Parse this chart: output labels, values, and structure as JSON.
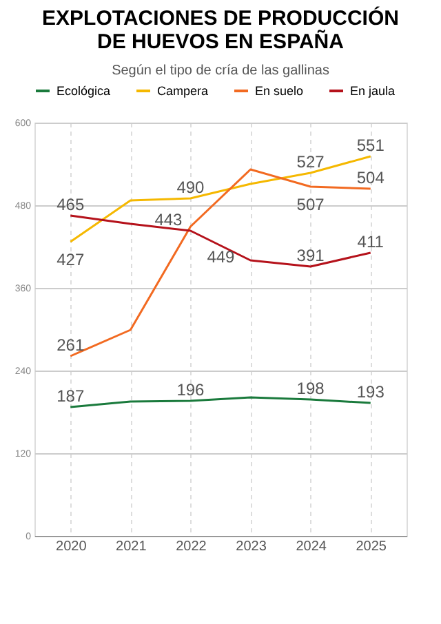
{
  "chart_data": {
    "type": "line",
    "title": "EXPLOTACIONES DE PRODUCCIÓN DE HUEVOS EN ESPAÑA",
    "subtitle": "Según el tipo de cría de las gallinas",
    "categories": [
      "2020",
      "2021",
      "2022",
      "2023",
      "2024",
      "2025"
    ],
    "series": [
      {
        "name": "Ecológica",
        "color": "#1a7a3c",
        "values": [
          187,
          195,
          196,
          201,
          198,
          193
        ],
        "value_labels": [
          "187",
          null,
          "196",
          null,
          "198",
          "193"
        ]
      },
      {
        "name": "Campera",
        "color": "#f5b800",
        "values": [
          427,
          487,
          490,
          511,
          527,
          551
        ],
        "value_labels": [
          "427",
          null,
          "490",
          null,
          "527",
          "551"
        ]
      },
      {
        "name": "En suelo",
        "color": "#f26a21",
        "values": [
          261,
          299,
          449,
          532,
          507,
          504
        ],
        "value_labels": [
          "261",
          null,
          "449",
          null,
          "507",
          "504"
        ]
      },
      {
        "name": "En jaula",
        "color": "#b5121b",
        "values": [
          465,
          453,
          443,
          400,
          391,
          411
        ],
        "value_labels": [
          "465",
          null,
          "443",
          null,
          "391",
          "411"
        ]
      }
    ],
    "ylim": [
      0,
      600
    ],
    "yticks": [
      0,
      120,
      240,
      360,
      480,
      600
    ],
    "grid": true,
    "legend": "top",
    "marker": "none",
    "line_style": "solid"
  }
}
